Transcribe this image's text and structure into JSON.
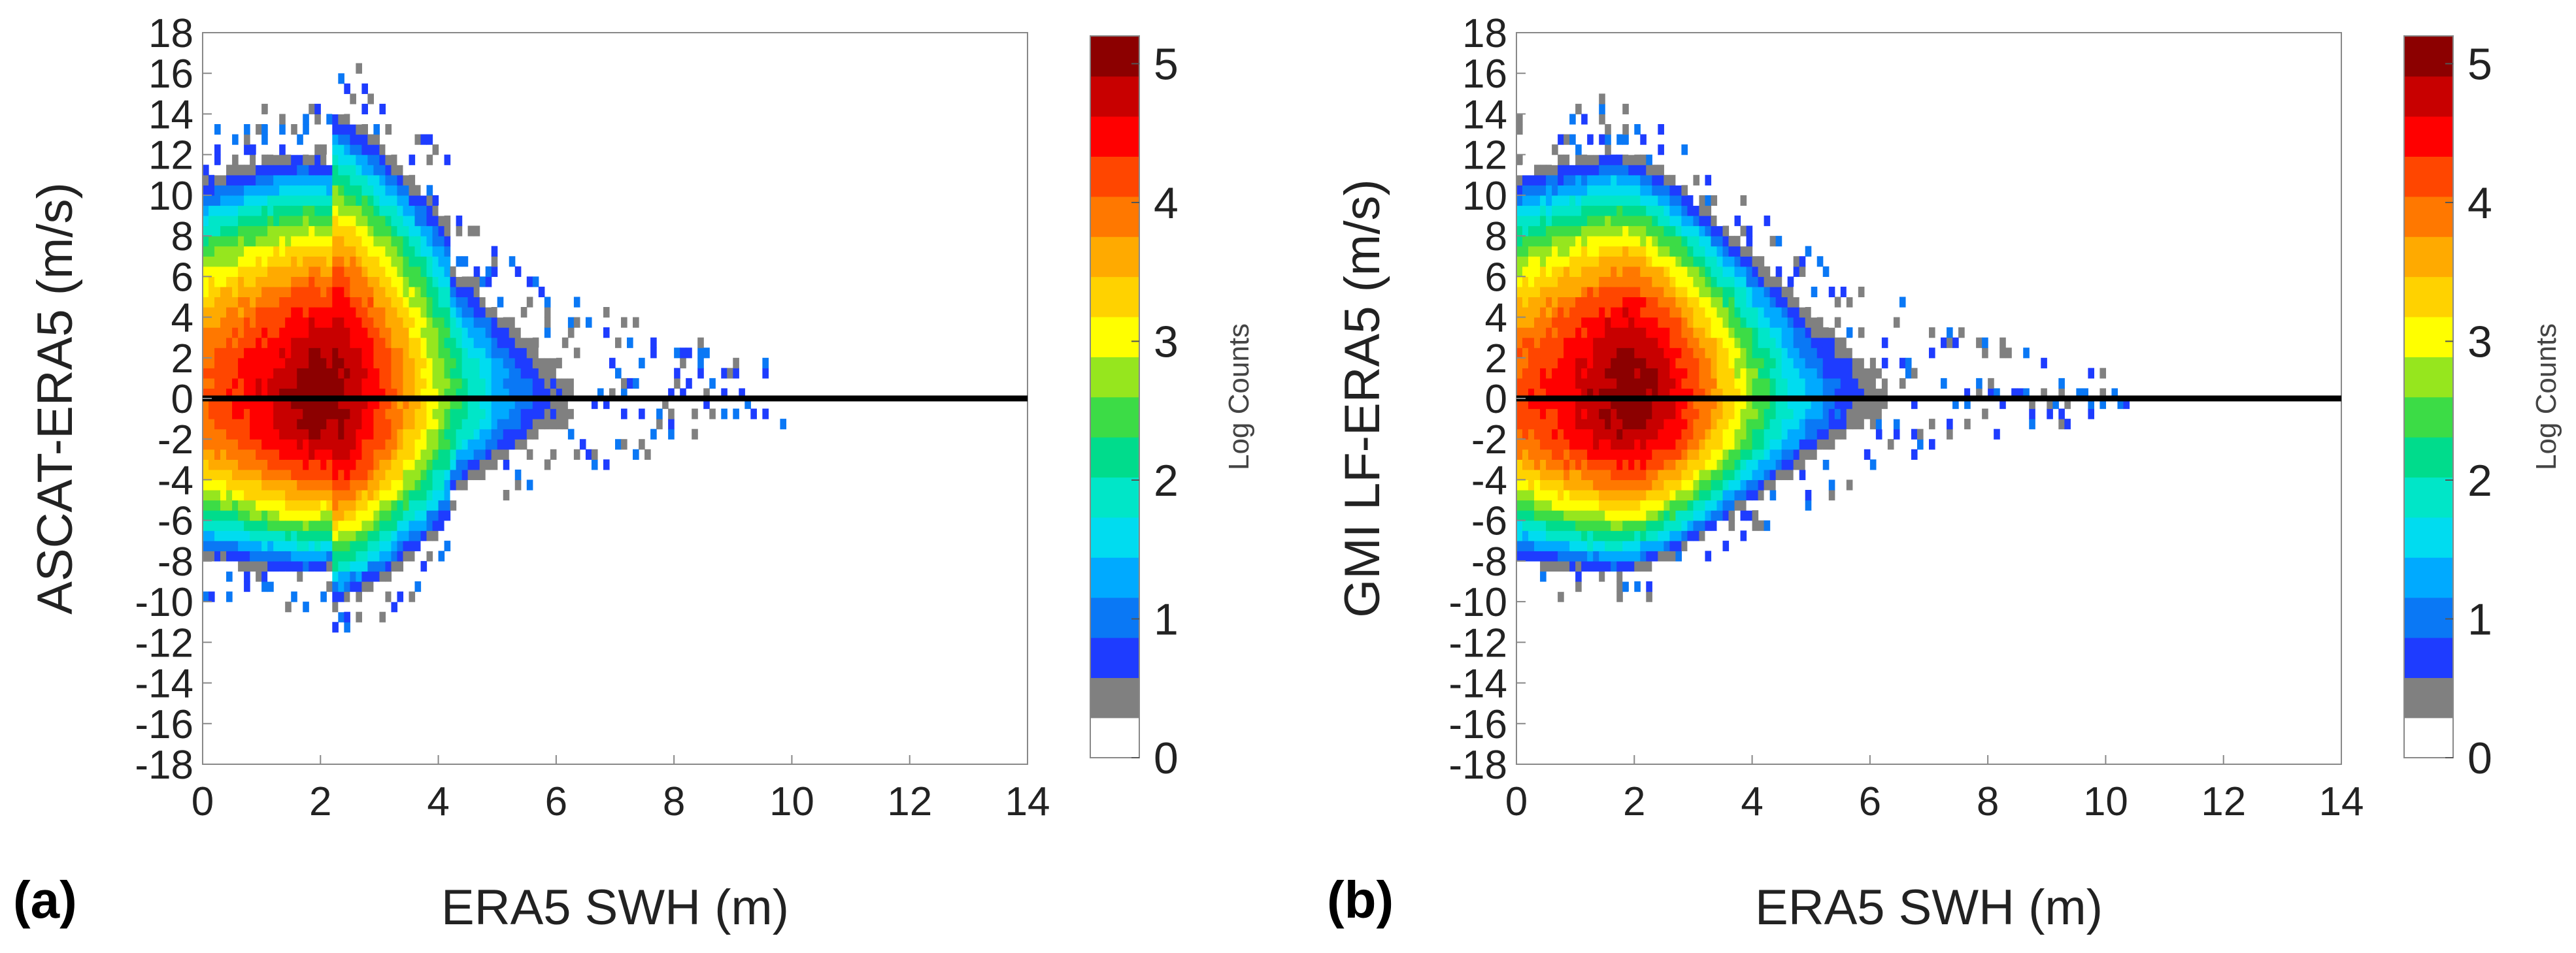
{
  "figure": {
    "panel_labels": [
      "(a)",
      "(b)"
    ]
  },
  "colors": {
    "zero_line": "#000000",
    "axis": "#222222",
    "colormap": [
      "#ffffff",
      "#808080",
      "#1e3cff",
      "#0a78f5",
      "#00aaff",
      "#00dcf0",
      "#00e6c8",
      "#00dc8c",
      "#3cdc46",
      "#96e61e",
      "#ffff00",
      "#ffd200",
      "#ffaa00",
      "#ff7800",
      "#ff4600",
      "#ff0000",
      "#c80000",
      "#8c0000"
    ]
  },
  "chart_data": [
    {
      "type": "heatmap",
      "panel": "(a)",
      "title": "",
      "xlabel": "ERA5 SWH (m)",
      "ylabel": "ASCAT-ERA5 (m/s)",
      "xlim": [
        0,
        14
      ],
      "ylim": [
        -18,
        18
      ],
      "xticks": [
        0,
        2,
        4,
        6,
        8,
        10,
        12,
        14
      ],
      "yticks": [
        18,
        16,
        14,
        12,
        10,
        8,
        6,
        4,
        2,
        0,
        -2,
        -4,
        -6,
        -8,
        -10,
        -12,
        -14,
        -16,
        -18
      ],
      "colorbar": {
        "label": "Log Counts",
        "range": [
          0,
          5.2
        ],
        "ticks": [
          0,
          1,
          2,
          3,
          4,
          5
        ]
      },
      "reference_line_y": 0,
      "density_model": {
        "x_peak": 1.9,
        "peak_log_count": 5.1,
        "x_extent_max": 10.0,
        "outlier_x_max": 10.0,
        "outlier_y_max": 16,
        "outlier_y_min": -10,
        "secondary_lobe_x": 3.2,
        "description": "log10 of collocation counts; bias spread narrows with increasing SWH"
      }
    },
    {
      "type": "heatmap",
      "panel": "(b)",
      "title": "",
      "xlabel": "ERA5 SWH (m)",
      "ylabel": "GMI LF-ERA5 (m/s)",
      "xlim": [
        0,
        14
      ],
      "ylim": [
        -18,
        18
      ],
      "xticks": [
        0,
        2,
        4,
        6,
        8,
        10,
        12,
        14
      ],
      "yticks": [
        18,
        16,
        14,
        12,
        10,
        8,
        6,
        4,
        2,
        0,
        -2,
        -4,
        -6,
        -8,
        -10,
        -12,
        -14,
        -16,
        -18
      ],
      "colorbar": {
        "label": "Log Counts",
        "range": [
          0,
          5.2
        ],
        "ticks": [
          0,
          1,
          2,
          3,
          4,
          5
        ]
      },
      "reference_line_y": 0,
      "density_model": {
        "x_peak": 1.8,
        "peak_log_count": 5.1,
        "x_extent_max": 10.6,
        "outlier_x_max": 10.7,
        "outlier_y_max": 15,
        "outlier_y_min": -10,
        "secondary_lobe_x": 0,
        "description": "log10 of collocation counts; bias spread narrows with increasing SWH"
      }
    }
  ]
}
